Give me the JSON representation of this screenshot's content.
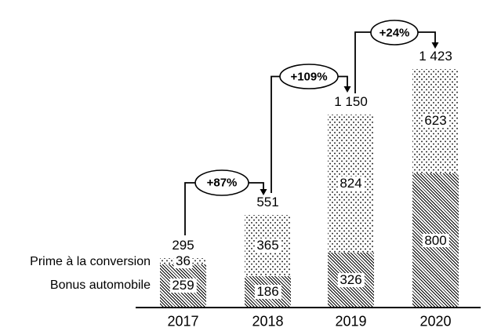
{
  "chart_data": {
    "type": "bar",
    "stacked": true,
    "title": "",
    "categories": [
      "2017",
      "2018",
      "2019",
      "2020"
    ],
    "series": [
      {
        "name": "Prime à la conversion",
        "pattern": "dots",
        "values": [
          36,
          365,
          824,
          623
        ],
        "labels": [
          "36",
          "365",
          "824",
          "623"
        ]
      },
      {
        "name": "Bonus automobile",
        "pattern": "diagonal-hatch",
        "values": [
          259,
          186,
          326,
          800
        ],
        "labels": [
          "259",
          "186",
          "326",
          "800"
        ]
      }
    ],
    "totals": {
      "values": [
        295,
        551,
        1150,
        1423
      ],
      "labels": [
        "295",
        "551",
        "1 150",
        "1 423"
      ]
    },
    "annotations": [
      {
        "label": "+87%",
        "from_category": "2017",
        "to_category": "2018"
      },
      {
        "label": "+109%",
        "from_category": "2018",
        "to_category": "2019"
      },
      {
        "label": "+24%",
        "from_category": "2019",
        "to_category": "2020"
      }
    ],
    "ylim": [
      0,
      1500
    ],
    "grid": false,
    "legend_position": "left-of-first-bar"
  },
  "colors": {
    "ink": "#000000",
    "background": "#ffffff"
  }
}
